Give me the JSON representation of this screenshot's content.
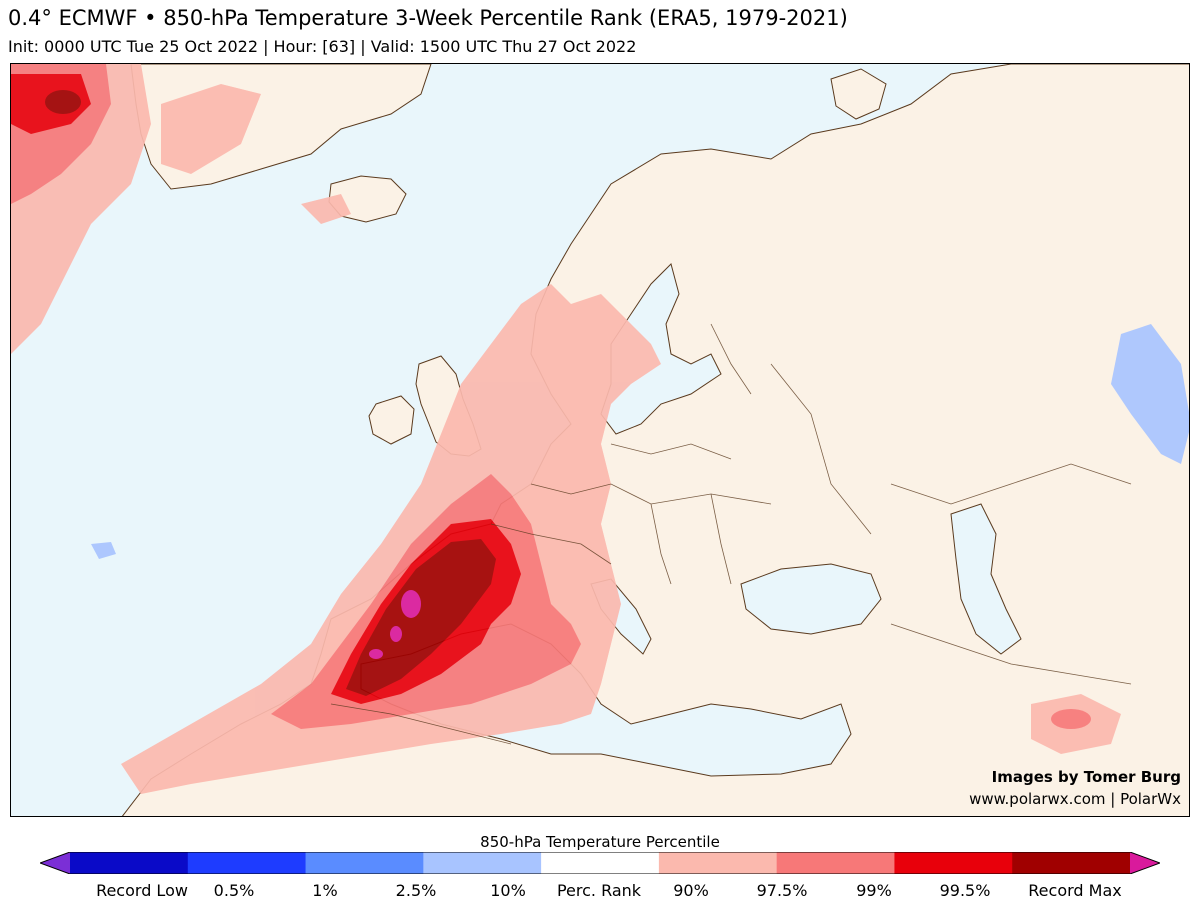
{
  "title": "0.4° ECMWF • 850-hPa Temperature 3-Week Percentile Rank (ERA5, 1979-2021)",
  "subtitle": "Init: 0000 UTC Tue 25 Oct 2022 | Hour: [63] | Valid: 1500 UTC Thu 27 Oct 2022",
  "credits": {
    "line1": "Images by Tomer Burg",
    "line2": "www.polarwx.com | PolarWx"
  },
  "colorbar": {
    "title": "850-hPa Temperature Percentile",
    "labels": [
      "Record Low",
      "0.5%",
      "1%",
      "2.5%",
      "10%",
      "Perc. Rank",
      "90%",
      "97.5%",
      "99%",
      "99.5%",
      "Record Max"
    ],
    "colors": [
      "#7b2fd6",
      "#0a0ac8",
      "#1e3cff",
      "#5a8cff",
      "#a8c4ff",
      "#ffffff",
      "#fbb9ae",
      "#f77878",
      "#e8000b",
      "#a00000",
      "#d91a9c"
    ]
  },
  "colors": {
    "ocean": "#e9f6fb",
    "land": "#fbf2e6",
    "border": "#5a3a1e"
  }
}
